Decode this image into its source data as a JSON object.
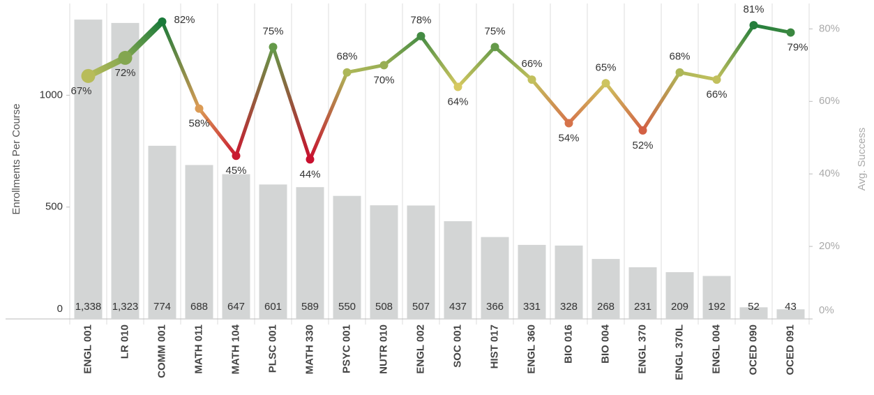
{
  "chart_data": {
    "type": "bar-line",
    "y_label": "Enrollments Per Course",
    "y2_label": "Avg. Success",
    "categories": [
      "ENGL 001",
      "LR 010",
      "COMM 001",
      "MATH 011",
      "MATH 104",
      "PLSC 001",
      "MATH 330",
      "PSYC 001",
      "NUTR 010",
      "ENGL 002",
      "SOC 001",
      "HIST 017",
      "ENGL 360",
      "BIO 016",
      "BIO 004",
      "ENGL 370",
      "ENGL 370L",
      "ENGL 004",
      "OCED 090",
      "OCED 091"
    ],
    "series": [
      {
        "name": "Enrollments Per Course",
        "type": "bar",
        "color": "#d3d5d5",
        "values": [
          1338,
          1323,
          774,
          688,
          647,
          601,
          589,
          550,
          508,
          507,
          437,
          366,
          331,
          328,
          268,
          231,
          209,
          192,
          52,
          43
        ],
        "value_labels": [
          "1,338",
          "1,323",
          "774",
          "688",
          "647",
          "601",
          "589",
          "550",
          "508",
          "507",
          "437",
          "366",
          "331",
          "328",
          "268",
          "231",
          "209",
          "192",
          "52",
          "43"
        ]
      },
      {
        "name": "Avg. Success",
        "type": "line",
        "axis": "y2",
        "colors": {
          "low": "#c8102e",
          "mid": "#e2cd63",
          "high": "#1a7a3a"
        },
        "values": [
          67,
          72,
          82,
          58,
          45,
          75,
          44,
          68,
          70,
          78,
          64,
          75,
          66,
          54,
          65,
          52,
          68,
          66,
          81,
          79
        ],
        "value_labels": [
          "67%",
          "72%",
          "82%",
          "58%",
          "45%",
          "75%",
          "44%",
          "68%",
          "70%",
          "78%",
          "64%",
          "75%",
          "66%",
          "54%",
          "65%",
          "52%",
          "68%",
          "66%",
          "81%",
          "79%"
        ]
      }
    ],
    "ylim": [
      0,
      1410
    ],
    "yticks": [
      0,
      500,
      1000
    ],
    "y2lim": [
      0,
      87
    ],
    "y2ticks": [
      {
        "value": 0,
        "label": "0%"
      },
      {
        "value": 20,
        "label": "20%"
      },
      {
        "value": 40,
        "label": "40%"
      },
      {
        "value": 60,
        "label": "60%"
      },
      {
        "value": 80,
        "label": "80%"
      }
    ]
  }
}
